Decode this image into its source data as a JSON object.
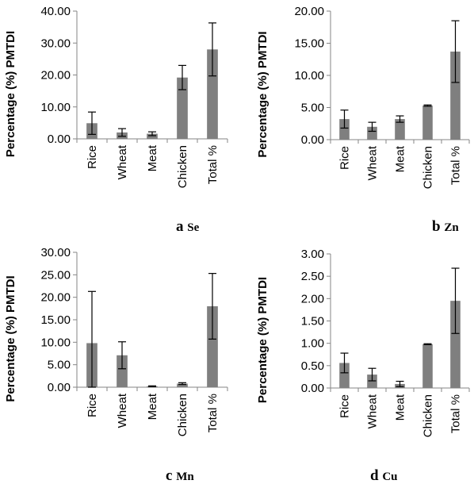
{
  "figure": {
    "bar_color": "#7f7f7f",
    "axis_color": "#868686",
    "error_bar_color": "#000000"
  },
  "chart_data": [
    {
      "type": "bar",
      "panel": "a",
      "element": "Se",
      "ylabel": "Percentage (%) PMTDI",
      "categories": [
        "Rice",
        "Wheat",
        "Meat",
        "Chicken",
        "Total %"
      ],
      "values": [
        4.9,
        2.0,
        1.6,
        19.2,
        28.0
      ],
      "error": [
        3.5,
        1.2,
        0.6,
        3.8,
        8.3
      ],
      "ylim": [
        0,
        40
      ],
      "yticks": [
        "0.00",
        "10.00",
        "20.00",
        "30.00",
        "40.00"
      ]
    },
    {
      "type": "bar",
      "panel": "b",
      "element": "Zn",
      "ylabel": "Percentage (%) PMTDI",
      "categories": [
        "Rice",
        "Wheat",
        "Meat",
        "Chicken",
        "Total %"
      ],
      "values": [
        3.2,
        2.0,
        3.2,
        5.3,
        13.7
      ],
      "error": [
        1.4,
        0.7,
        0.5,
        0.1,
        4.8
      ],
      "ylim": [
        0,
        20
      ],
      "yticks": [
        "0.00",
        "5.00",
        "10.00",
        "15.00",
        "20.00"
      ]
    },
    {
      "type": "bar",
      "panel": "c",
      "element": "Mn",
      "ylabel": "Percentage (%) PMTDI",
      "categories": [
        "Rice",
        "Wheat",
        "Meat",
        "Chicken",
        "Total %"
      ],
      "values": [
        9.8,
        7.1,
        0.2,
        0.8,
        18.0
      ],
      "error": [
        11.5,
        3.0,
        0.1,
        0.2,
        7.3
      ],
      "ylim": [
        0,
        30
      ],
      "yticks": [
        "0.00",
        "5.00",
        "10.00",
        "15.00",
        "20.00",
        "25.00",
        "30.00"
      ]
    },
    {
      "type": "bar",
      "panel": "d",
      "element": "Cu",
      "ylabel": "Percentage (%) PMTDI",
      "categories": [
        "Rice",
        "Wheat",
        "Meat",
        "Chicken",
        "Total %"
      ],
      "values": [
        0.56,
        0.3,
        0.09,
        0.98,
        1.95
      ],
      "error": [
        0.22,
        0.14,
        0.06,
        0.01,
        0.73
      ],
      "ylim": [
        0,
        3
      ],
      "yticks": [
        "0.00",
        "0.50",
        "1.00",
        "1.50",
        "2.00",
        "2.50",
        "3.00"
      ]
    }
  ]
}
